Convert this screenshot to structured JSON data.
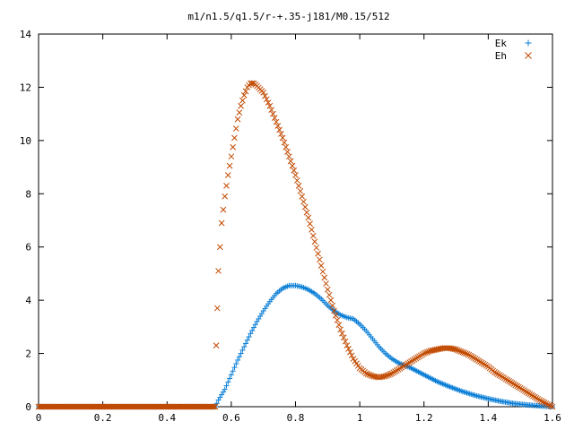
{
  "chart_data": {
    "type": "scatter",
    "title": "m1/n1.5/q1.5/r-+.35-j181/M0.15/512",
    "xlabel": "",
    "ylabel": "",
    "xlim": [
      0,
      1.6
    ],
    "ylim": [
      0,
      14
    ],
    "x_ticks": [
      "0",
      "0.2",
      "0.4",
      "0.6",
      "0.8",
      "1",
      "1.2",
      "1.4",
      "1.6"
    ],
    "y_ticks": [
      "0",
      "2",
      "4",
      "6",
      "8",
      "10",
      "12",
      "14"
    ],
    "x_tick_values": [
      0,
      0.2,
      0.4,
      0.6,
      0.8,
      1.0,
      1.2,
      1.4,
      1.6
    ],
    "y_tick_values": [
      0,
      2,
      4,
      6,
      8,
      10,
      12,
      14
    ],
    "grid": false,
    "legend_position": "top-right",
    "series": [
      {
        "name": "Ek",
        "marker": "plus",
        "color": "#0a7ed6",
        "points": [
          [
            0.0,
            0
          ],
          [
            0.55,
            0
          ],
          [
            0.56,
            0.25
          ],
          [
            0.58,
            0.65
          ],
          [
            0.6,
            1.2
          ],
          [
            0.62,
            1.75
          ],
          [
            0.64,
            2.25
          ],
          [
            0.66,
            2.75
          ],
          [
            0.68,
            3.2
          ],
          [
            0.7,
            3.6
          ],
          [
            0.72,
            3.95
          ],
          [
            0.74,
            4.25
          ],
          [
            0.76,
            4.45
          ],
          [
            0.78,
            4.55
          ],
          [
            0.8,
            4.55
          ],
          [
            0.82,
            4.5
          ],
          [
            0.84,
            4.4
          ],
          [
            0.86,
            4.25
          ],
          [
            0.88,
            4.05
          ],
          [
            0.9,
            3.8
          ],
          [
            0.92,
            3.6
          ],
          [
            0.94,
            3.45
          ],
          [
            0.96,
            3.35
          ],
          [
            0.98,
            3.3
          ],
          [
            1.0,
            3.1
          ],
          [
            1.02,
            2.85
          ],
          [
            1.04,
            2.55
          ],
          [
            1.06,
            2.25
          ],
          [
            1.08,
            2.0
          ],
          [
            1.1,
            1.8
          ],
          [
            1.12,
            1.65
          ],
          [
            1.14,
            1.55
          ],
          [
            1.16,
            1.45
          ],
          [
            1.2,
            1.2
          ],
          [
            1.24,
            0.95
          ],
          [
            1.28,
            0.75
          ],
          [
            1.32,
            0.57
          ],
          [
            1.36,
            0.42
          ],
          [
            1.4,
            0.3
          ],
          [
            1.44,
            0.2
          ],
          [
            1.48,
            0.12
          ],
          [
            1.52,
            0.07
          ],
          [
            1.56,
            0.03
          ],
          [
            1.6,
            0.0
          ]
        ]
      },
      {
        "name": "Eh",
        "marker": "cross",
        "color": "#c24a00",
        "points": [
          [
            0.0,
            0
          ],
          [
            0.55,
            0
          ],
          [
            0.553,
            2.3
          ],
          [
            0.56,
            5.1
          ],
          [
            0.565,
            6.0
          ],
          [
            0.57,
            6.9
          ],
          [
            0.575,
            7.4
          ],
          [
            0.58,
            7.9
          ],
          [
            0.59,
            8.7
          ],
          [
            0.6,
            9.4
          ],
          [
            0.61,
            10.1
          ],
          [
            0.62,
            10.8
          ],
          [
            0.63,
            11.3
          ],
          [
            0.64,
            11.7
          ],
          [
            0.65,
            12.0
          ],
          [
            0.66,
            12.15
          ],
          [
            0.67,
            12.15
          ],
          [
            0.68,
            12.05
          ],
          [
            0.7,
            11.8
          ],
          [
            0.72,
            11.3
          ],
          [
            0.74,
            10.7
          ],
          [
            0.76,
            10.1
          ],
          [
            0.78,
            9.4
          ],
          [
            0.8,
            8.7
          ],
          [
            0.82,
            7.9
          ],
          [
            0.84,
            7.1
          ],
          [
            0.86,
            6.2
          ],
          [
            0.88,
            5.3
          ],
          [
            0.9,
            4.4
          ],
          [
            0.92,
            3.6
          ],
          [
            0.94,
            2.9
          ],
          [
            0.96,
            2.3
          ],
          [
            0.98,
            1.8
          ],
          [
            1.0,
            1.45
          ],
          [
            1.02,
            1.25
          ],
          [
            1.04,
            1.15
          ],
          [
            1.06,
            1.1
          ],
          [
            1.08,
            1.15
          ],
          [
            1.1,
            1.25
          ],
          [
            1.12,
            1.4
          ],
          [
            1.14,
            1.55
          ],
          [
            1.16,
            1.7
          ],
          [
            1.18,
            1.85
          ],
          [
            1.2,
            2.0
          ],
          [
            1.22,
            2.1
          ],
          [
            1.24,
            2.15
          ],
          [
            1.26,
            2.2
          ],
          [
            1.28,
            2.2
          ],
          [
            1.3,
            2.15
          ],
          [
            1.32,
            2.05
          ],
          [
            1.34,
            1.95
          ],
          [
            1.36,
            1.8
          ],
          [
            1.38,
            1.65
          ],
          [
            1.4,
            1.5
          ],
          [
            1.42,
            1.3
          ],
          [
            1.44,
            1.15
          ],
          [
            1.46,
            1.0
          ],
          [
            1.48,
            0.85
          ],
          [
            1.5,
            0.7
          ],
          [
            1.52,
            0.55
          ],
          [
            1.54,
            0.4
          ],
          [
            1.56,
            0.25
          ],
          [
            1.58,
            0.12
          ],
          [
            1.6,
            0.0
          ]
        ]
      }
    ]
  }
}
